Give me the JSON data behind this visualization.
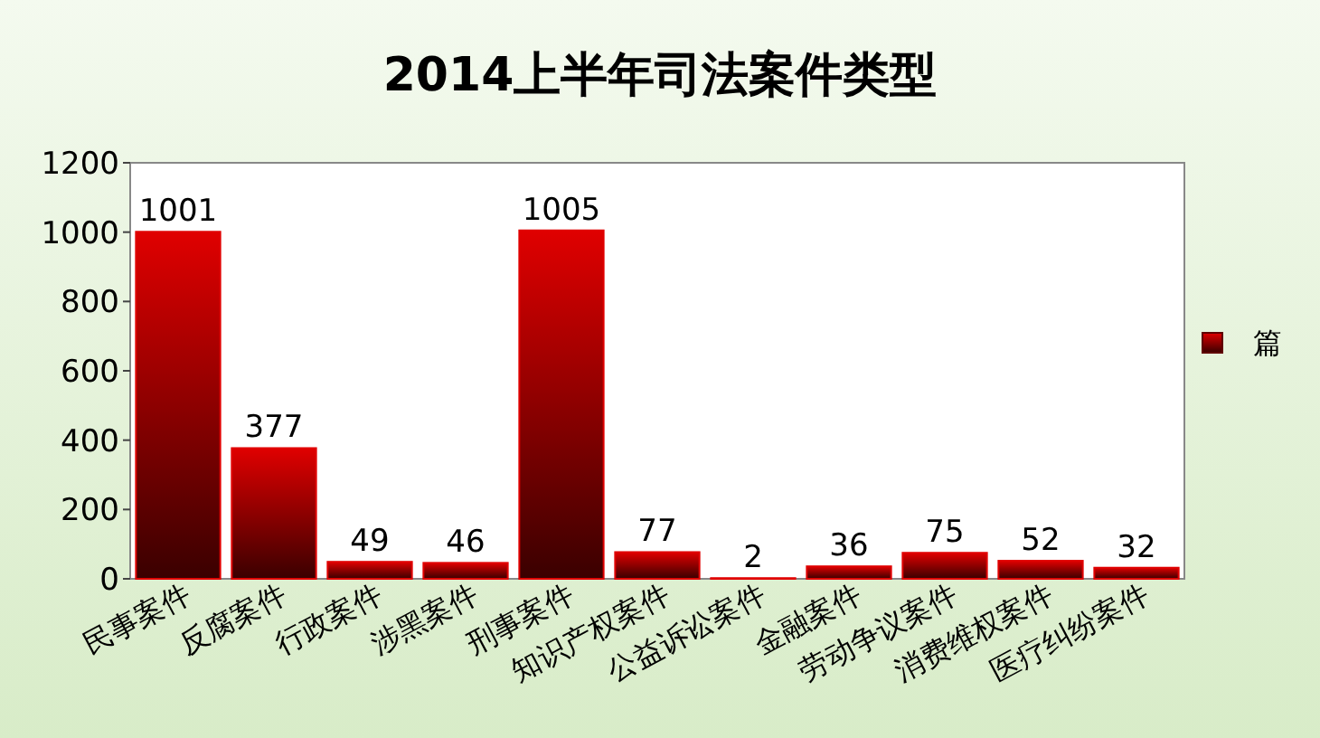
{
  "chart_data": {
    "type": "bar",
    "title": "2014上半年司法案件类型",
    "categories": [
      "民事案件",
      "反腐案件",
      "行政案件",
      "涉黑案件",
      "刑事案件",
      "知识产权案件",
      "公益诉讼案件",
      "金融案件",
      "劳动争议案件",
      "消费维权案件",
      "医疗纠纷案件"
    ],
    "series": [
      {
        "name": "篇",
        "color": "#e00000",
        "values": [
          1001,
          377,
          49,
          46,
          1005,
          77,
          2,
          36,
          75,
          52,
          32
        ]
      }
    ],
    "ylim": [
      0,
      1200
    ],
    "yticks": [
      0,
      200,
      400,
      600,
      800,
      1000,
      1200
    ],
    "data_labels": true,
    "legend": "right",
    "grid": false
  }
}
